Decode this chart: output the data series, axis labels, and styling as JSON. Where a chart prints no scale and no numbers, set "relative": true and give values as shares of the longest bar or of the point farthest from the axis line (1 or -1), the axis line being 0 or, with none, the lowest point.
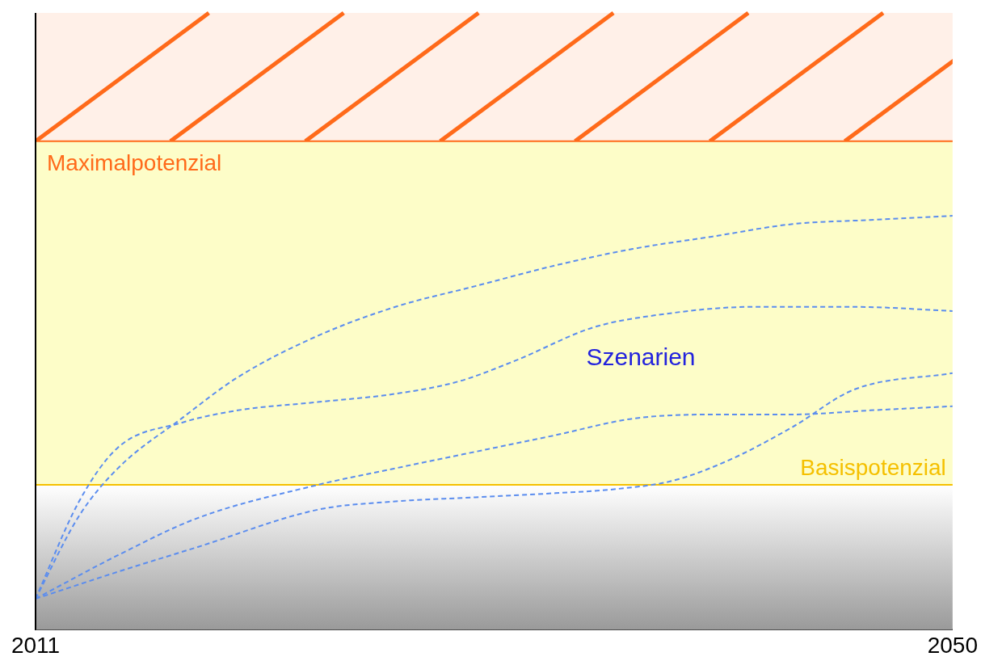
{
  "chart_data": {
    "type": "line",
    "relative": true,
    "line_style": "dashed",
    "marker": "none",
    "grid": false,
    "legend": false,
    "xlim": [
      2011,
      2050
    ],
    "xticks": [
      2011,
      2050
    ],
    "series": [
      {
        "color": "#5b8def",
        "x": [
          2011,
          2012.85,
          2014.5,
          2017.2,
          2019.6,
          2023,
          2026.3,
          2029.7,
          2033.1,
          2036.4,
          2039.8,
          2043.2,
          2046.5,
          2050
        ],
        "values": [
          0.075,
          0.275,
          0.39,
          0.51,
          0.61,
          0.71,
          0.78,
          0.83,
          0.88,
          0.92,
          0.95,
          0.98,
          0.99,
          1
        ]
      },
      {
        "color": "#5b8def",
        "x": [
          2011,
          2012.85,
          2014.5,
          2017.2,
          2019.6,
          2023,
          2026.3,
          2029,
          2031.4,
          2034.7,
          2037.4,
          2041.5,
          2045.8,
          2050
        ],
        "values": [
          0.075,
          0.31,
          0.44,
          0.5,
          0.53,
          0.55,
          0.57,
          0.6,
          0.65,
          0.73,
          0.76,
          0.78,
          0.78,
          0.77
        ]
      },
      {
        "color": "#5b8def",
        "x": [
          2011,
          2014.5,
          2017.9,
          2023,
          2026.3,
          2029.7,
          2033.1,
          2036.4,
          2039.8,
          2043.2,
          2046.5,
          2050
        ],
        "values": [
          0.075,
          0.18,
          0.27,
          0.35,
          0.39,
          0.43,
          0.47,
          0.51,
          0.52,
          0.52,
          0.53,
          0.54
        ]
      },
      {
        "color": "#5b8def",
        "x": [
          2011,
          2014.5,
          2017.9,
          2023,
          2026.3,
          2029.7,
          2033.1,
          2035.7,
          2038.1,
          2040.5,
          2043.2,
          2045.8,
          2050
        ],
        "values": [
          0.075,
          0.14,
          0.2,
          0.29,
          0.31,
          0.32,
          0.33,
          0.34,
          0.36,
          0.41,
          0.49,
          0.58,
          0.62
        ]
      }
    ],
    "ref_lines": [
      {
        "axis": "y",
        "value": 1.18,
        "label": "Maximalpotenzial",
        "color": "#ff6a1a"
      },
      {
        "axis": "y",
        "value": 0.35,
        "label": "Basispotenzial",
        "color": "#f5c000"
      }
    ],
    "bands": [
      {
        "axis": "y",
        "from": 0,
        "to": 0.35,
        "color": "#9a9a9a"
      },
      {
        "axis": "y",
        "from": 0.35,
        "to": 1.18,
        "color": "#fdfdc8"
      },
      {
        "axis": "y",
        "from": 1.18,
        "to": 1.49,
        "color": "#ff6a1a"
      }
    ],
    "annotations": [
      "Szenarien"
    ]
  }
}
